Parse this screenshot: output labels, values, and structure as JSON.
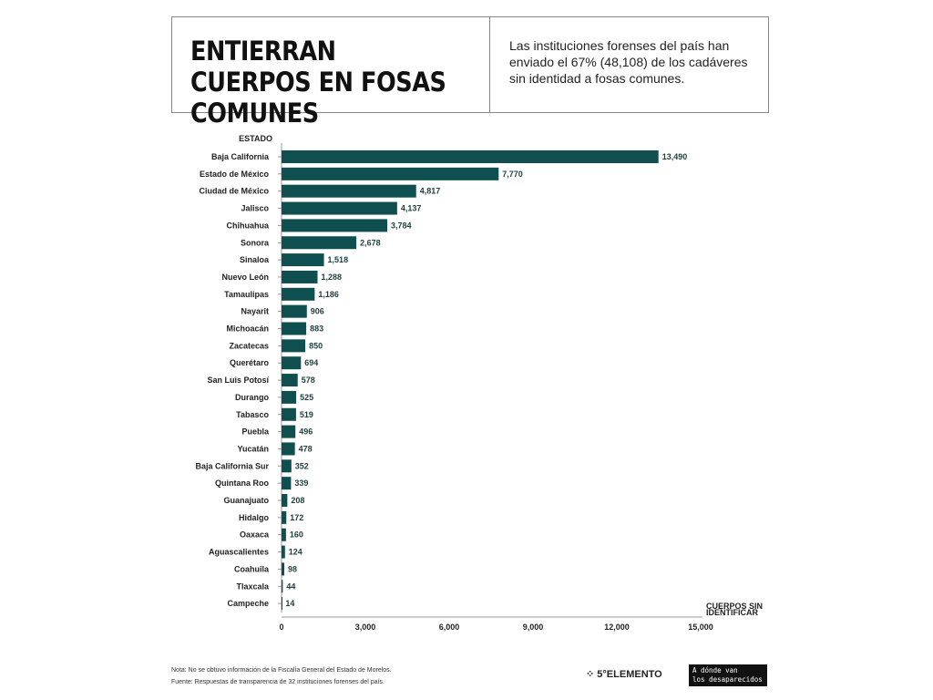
{
  "header": {
    "title": "ENTIERRAN CUERPOS EN FOSAS COMUNES",
    "subtitle": "Las instituciones forenses del país han enviado el 67% (48,108) de los cadáveres sin identidad a fosas comunes."
  },
  "chart_data": {
    "type": "bar",
    "orientation": "horizontal",
    "ylabel": "ESTADO",
    "xlabel": "CUERPOS SIN IDENTIFICAR",
    "xlim": [
      0,
      15000
    ],
    "xticks": [
      "0",
      "3,000",
      "6,000",
      "9,000",
      "12,000",
      "15,000"
    ],
    "bar_color": "#0f4f4f",
    "categories": [
      "Baja California",
      "Estado de México",
      "Ciudad de México",
      "Jalisco",
      "Chihuahua",
      "Sonora",
      "Sinaloa",
      "Nuevo León",
      "Tamaulipas",
      "Nayarit",
      "Michoacán",
      "Zacatecas",
      "Querétaro",
      "San Luis Potosí",
      "Durango",
      "Tabasco",
      "Puebla",
      "Yucatán",
      "Baja California Sur",
      "Quintana Roo",
      "Guanajuato",
      "Hidalgo",
      "Oaxaca",
      "Aguascalientes",
      "Coahuila",
      "Tlaxcala",
      "Campeche"
    ],
    "values": [
      13490,
      7770,
      4817,
      4137,
      3784,
      2678,
      1518,
      1288,
      1186,
      906,
      883,
      850,
      694,
      578,
      525,
      519,
      496,
      478,
      352,
      339,
      208,
      172,
      160,
      124,
      98,
      44,
      14
    ],
    "labels": [
      "13,490",
      "7,770",
      "4,817",
      "4,137",
      "3,784",
      "2,678",
      "1,518",
      "1,288",
      "1,186",
      "906",
      "883",
      "850",
      "694",
      "578",
      "525",
      "519",
      "496",
      "478",
      "352",
      "339",
      "208",
      "172",
      "160",
      "124",
      "98",
      "44",
      "14"
    ]
  },
  "footer": {
    "note": "Nota: No se obtuvo información de la Fiscalía General del Estado de Morelos.",
    "source": "Fuente: Respuestas de transparencia de 32 instituciones forenses del país.",
    "logo1": "5°ELEMENTO",
    "logo2_line1": "A dónde van",
    "logo2_line2": "los desaparecidos"
  }
}
